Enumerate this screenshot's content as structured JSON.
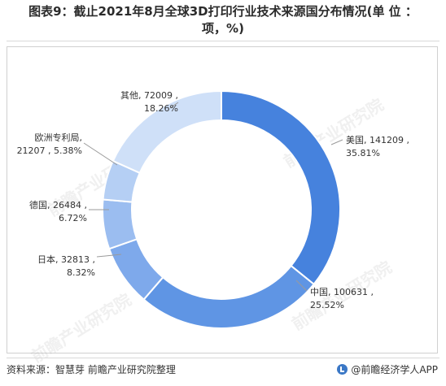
{
  "title": {
    "line1": "图表9：截止2021年8月全球3D打印行业技术来源国分布情况(单 位 ：",
    "line2": "项，%)"
  },
  "chart_data": {
    "type": "pie",
    "style": "donut",
    "start_angle_deg": 0,
    "direction": "clockwise",
    "slices": [
      {
        "name": "美国",
        "value": 141209,
        "percent": "35.81%",
        "label_line1": "美国, 141209 ,",
        "label_line2": "35.81%",
        "color": "#4682dd"
      },
      {
        "name": "中国",
        "value": 100631,
        "percent": "25.52%",
        "label_line1": "中国, 100631 ,",
        "label_line2": "25.52%",
        "color": "#5f95e4"
      },
      {
        "name": "日本",
        "value": 32813,
        "percent": "8.32%",
        "label_line1": "日本, 32813 ,",
        "label_line2": "8.32%",
        "color": "#7ea9eb"
      },
      {
        "name": "德国",
        "value": 26484,
        "percent": "6.72%",
        "label_line1": "德国, 26484 ,",
        "label_line2": "6.72%",
        "color": "#9bbdf0"
      },
      {
        "name": "欧洲专利局",
        "value": 21207,
        "percent": "5.38%",
        "label_line1": "欧洲专利局,",
        "label_line2": "21207 , 5.38%",
        "color": "#b5cff4"
      },
      {
        "name": "其他",
        "value": 72009,
        "percent": "18.26%",
        "label_line1": "其他, 72009 ,",
        "label_line2": "18.26%",
        "color": "#cfe0f8"
      }
    ]
  },
  "footer": {
    "source": "资料来源：智慧芽 前瞻产业研究院整理",
    "brand": "@前瞻经济学人APP"
  },
  "watermark": "前瞻产业研究院",
  "colors": {
    "primary": "#4682dd",
    "divider": "#d9d9d9"
  }
}
